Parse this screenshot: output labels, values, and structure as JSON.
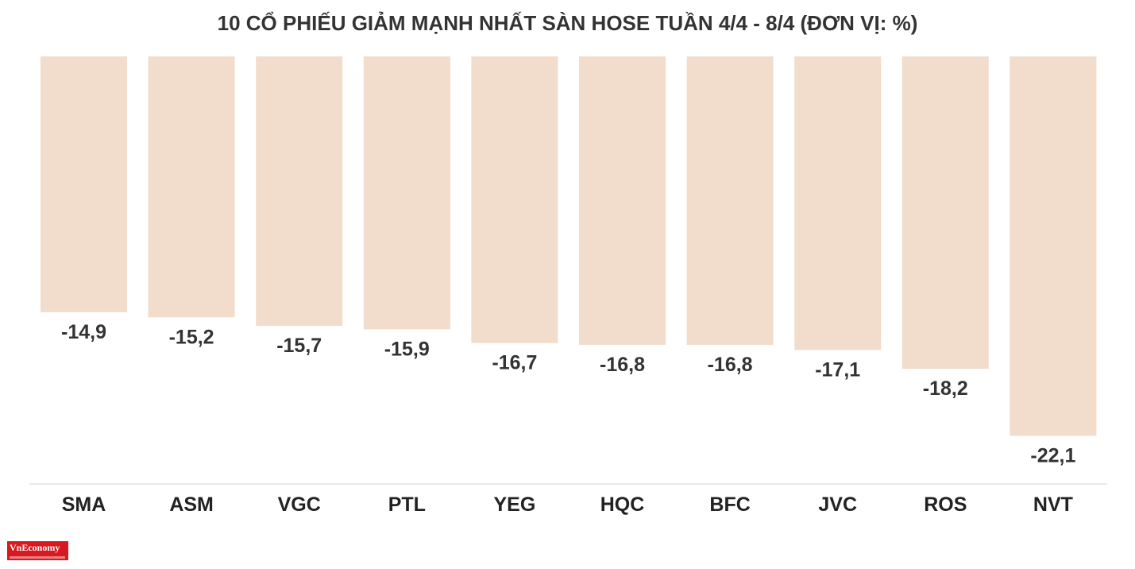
{
  "chart_data": {
    "type": "bar",
    "title": "10 CỔ PHIẾU GIẢM MẠNH NHẤT SÀN HOSE TUẦN 4/4 - 8/4 (ĐƠN VỊ: %)",
    "categories": [
      "SMA",
      "ASM",
      "VGC",
      "PTL",
      "YEG",
      "HQC",
      "BFC",
      "JVC",
      "ROS",
      "NVT"
    ],
    "values": [
      -14.9,
      -15.2,
      -15.7,
      -15.9,
      -16.7,
      -16.8,
      -16.8,
      -17.1,
      -18.2,
      -22.1
    ],
    "value_labels": [
      "-14,9",
      "-15,2",
      "-15,7",
      "-15,9",
      "-16,7",
      "-16,8",
      "-16,8",
      "-17,1",
      "-18,2",
      "-22,1"
    ],
    "xlabel": "",
    "ylabel": "",
    "grid": false,
    "legend": "none",
    "bar_color": "#f2dccb",
    "text_color": "#333333"
  },
  "logo": {
    "text": "VnEconomy",
    "color": "#d71920"
  }
}
